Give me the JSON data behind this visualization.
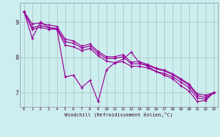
{
  "xlabel": "Windchill (Refroidissement éolien,°C)",
  "bg_color": "#cceeee",
  "line_color": "#990099",
  "grid_color": "#aabbbb",
  "xlim": [
    -0.5,
    23.5
  ],
  "ylim": [
    6.6,
    9.55
  ],
  "yticks": [
    7,
    8,
    9
  ],
  "xticks": [
    0,
    1,
    2,
    3,
    4,
    5,
    6,
    7,
    8,
    9,
    10,
    11,
    12,
    13,
    14,
    15,
    16,
    17,
    18,
    19,
    20,
    21,
    22,
    23
  ],
  "series": [
    [
      9.3,
      8.55,
      9.0,
      8.85,
      8.8,
      7.45,
      7.5,
      7.15,
      7.35,
      6.75,
      7.65,
      7.85,
      7.95,
      8.15,
      7.85,
      7.75,
      7.6,
      7.5,
      7.4,
      7.2,
      7.05,
      6.75,
      6.78,
      7.0
    ],
    [
      9.3,
      8.8,
      8.85,
      8.8,
      8.8,
      8.35,
      8.3,
      8.2,
      8.25,
      8.05,
      7.9,
      7.85,
      7.88,
      7.75,
      7.75,
      7.7,
      7.6,
      7.55,
      7.45,
      7.3,
      7.15,
      6.85,
      6.82,
      7.0
    ],
    [
      9.3,
      8.85,
      8.9,
      8.85,
      8.82,
      8.45,
      8.4,
      8.27,
      8.32,
      8.12,
      7.97,
      7.97,
      8.02,
      7.82,
      7.82,
      7.78,
      7.68,
      7.62,
      7.52,
      7.37,
      7.22,
      6.92,
      6.87,
      7.0
    ],
    [
      9.3,
      8.95,
      8.97,
      8.92,
      8.88,
      8.52,
      8.47,
      8.32,
      8.38,
      8.17,
      8.02,
      8.02,
      8.08,
      7.87,
      7.88,
      7.8,
      7.7,
      7.64,
      7.54,
      7.4,
      7.25,
      6.97,
      6.93,
      7.0
    ]
  ]
}
